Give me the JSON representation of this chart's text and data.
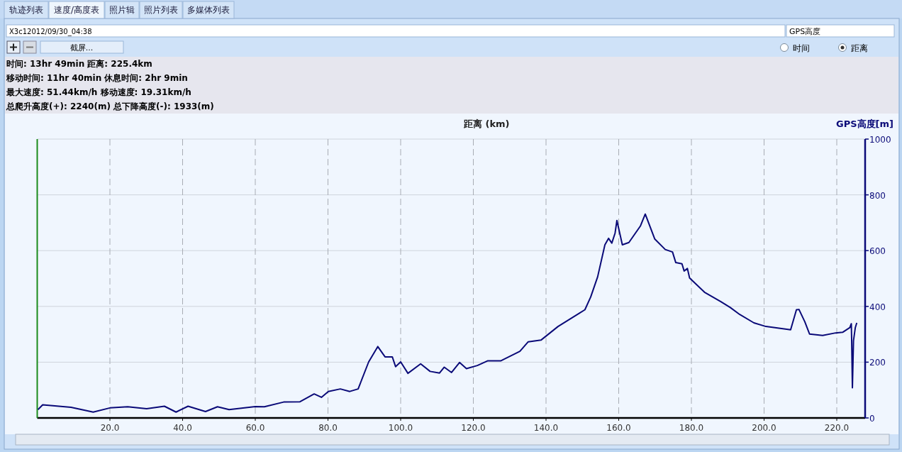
{
  "chart_data": {
    "type": "line",
    "title": "距离 (km)",
    "ylabel": "GPS高度[m]",
    "annotations": [
      "轨迹列表",
      "速度/高度表",
      "照片辑",
      "照片列表",
      "多媒体列表",
      "X3c12012/09/30_04:38",
      "GPS高度",
      "截屏...",
      "时间",
      "距离",
      "时间: 13hr 49min  距离: 225.4km",
      "移动时间: 11hr 40min  休息时间: 2hr 9min",
      "最大速度: 51.44km/h  移动速度: 19.31km/h",
      "总爬升高度(+): 2240(m)  总下降高度(-): 1933(m)"
    ],
    "xlim": [
      0,
      227.8
    ],
    "ylim": [
      0,
      1000
    ],
    "xticks": [
      {
        "value": 20,
        "label": "20.0"
      },
      {
        "value": 40,
        "label": "40.0"
      },
      {
        "value": 60,
        "label": "60.0"
      },
      {
        "value": 80,
        "label": "80.0"
      },
      {
        "value": 100,
        "label": "100.0"
      },
      {
        "value": 120,
        "label": "120.0"
      },
      {
        "value": 140,
        "label": "140.0"
      },
      {
        "value": 160,
        "label": "160.0"
      },
      {
        "value": 180,
        "label": "180.0"
      },
      {
        "value": 200,
        "label": "200.0"
      },
      {
        "value": 220,
        "label": "220.0"
      }
    ],
    "yticks": [
      0,
      200,
      400,
      600,
      800,
      1000
    ],
    "grid": true,
    "marker": "none",
    "line_style": "solid",
    "ref_lines": [
      {
        "axis": "x",
        "value": 0,
        "color": "#1a8a1a"
      }
    ],
    "series": [
      {
        "color": "#0a0a78",
        "x": [
          0.2,
          1.5,
          9.3,
          15.4,
          20,
          24.9,
          30.1,
          35,
          38.2,
          41.5,
          46.3,
          49.6,
          52.8,
          60,
          62.5,
          67.8,
          72.3,
          76.2,
          78.2,
          80.1,
          83.4,
          86,
          88.3,
          91.2,
          93.7,
          95.7,
          97.7,
          98.6,
          100,
          102,
          105.5,
          108.1,
          110.7,
          112,
          114,
          116.2,
          118.1,
          121.1,
          124,
          127.6,
          132.8,
          135.1,
          138.6,
          143.3,
          149.1,
          150.7,
          152.3,
          154.2,
          156.2,
          157.2,
          158.1,
          159,
          159.5,
          161,
          162.8,
          166,
          167.3,
          169.9,
          172.8,
          174.8,
          175.7,
          177.4,
          178,
          178.9,
          179.5,
          183.6,
          188.1,
          190.7,
          193.3,
          197.2,
          200.5,
          207.3,
          208.9,
          209.6,
          211.2,
          212.5,
          216.1,
          219.7,
          221.6,
          223.6,
          224,
          224.1,
          224.3,
          224.6,
          225.1,
          225.5
        ],
        "values": [
          30,
          47,
          38,
          21,
          36,
          40,
          33,
          42,
          21,
          42,
          23,
          40,
          30,
          41,
          40,
          57,
          58,
          86,
          74,
          95,
          104,
          95,
          104,
          201,
          256,
          219,
          219,
          184,
          201,
          160,
          194,
          167,
          161,
          182,
          163,
          199,
          177,
          188,
          205,
          205,
          239,
          273,
          279,
          328,
          375,
          388,
          434,
          506,
          621,
          644,
          627,
          663,
          708,
          621,
          629,
          689,
          731,
          642,
          604,
          595,
          557,
          553,
          527,
          536,
          502,
          451,
          417,
          396,
          371,
          341,
          328,
          316,
          388,
          389,
          345,
          301,
          296,
          305,
          307,
          324,
          338,
          277,
          108,
          277,
          324,
          341
        ]
      }
    ]
  }
}
